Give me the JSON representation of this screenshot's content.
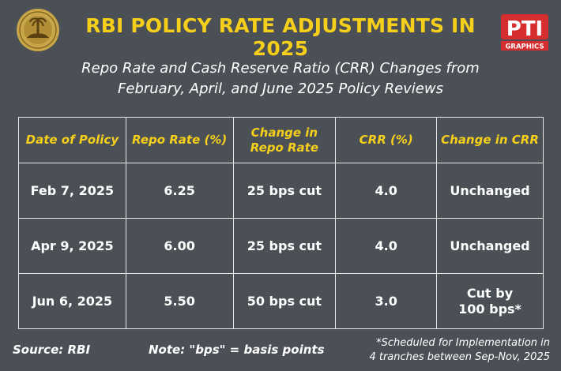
{
  "title": "RBI POLICY RATE ADJUSTMENTS IN 2025",
  "subtitle_line1": "Repo Rate and Cash Reserve Ratio (CRR) Changes from",
  "subtitle_line2": "February, April, and June 2025 Policy Reviews",
  "logos": {
    "left": "rbi-seal-logo",
    "right_word": "PTI",
    "right_sub": "GRAPHICS",
    "right_color": "#d62e2e"
  },
  "colors": {
    "background": "#4b5056",
    "accent": "#f5cf1a",
    "text": "#ffffff"
  },
  "chart_data": {
    "type": "table",
    "columns": [
      "Date of Policy",
      "Repo Rate (%)",
      "Change in Repo Rate",
      "CRR (%)",
      "Change in CRR"
    ],
    "rows": [
      [
        "Feb 7, 2025",
        "6.25",
        "25 bps cut",
        "4.0",
        "Unchanged"
      ],
      [
        "Apr 9, 2025",
        "6.00",
        "25 bps cut",
        "4.0",
        "Unchanged"
      ],
      [
        "Jun 6, 2025",
        "5.50",
        "50 bps cut",
        "3.0",
        "Cut by 100 bps*"
      ]
    ]
  },
  "table_display": {
    "headers": [
      {
        "line1": "Date of Policy",
        "line2": ""
      },
      {
        "line1": "Repo Rate (%)",
        "line2": ""
      },
      {
        "line1": "Change in",
        "line2": "Repo Rate"
      },
      {
        "line1": "CRR (%)",
        "line2": ""
      },
      {
        "line1": "Change in CRR",
        "line2": ""
      }
    ],
    "last_cell": {
      "line1": "Cut by",
      "line2": "100 bps*"
    }
  },
  "footer": {
    "source": "Source: RBI",
    "note": "Note: \"bps\" = basis points",
    "schedule_line1": "*Scheduled for Implementation in",
    "schedule_line2": "4 tranches between Sep-Nov, 2025"
  }
}
